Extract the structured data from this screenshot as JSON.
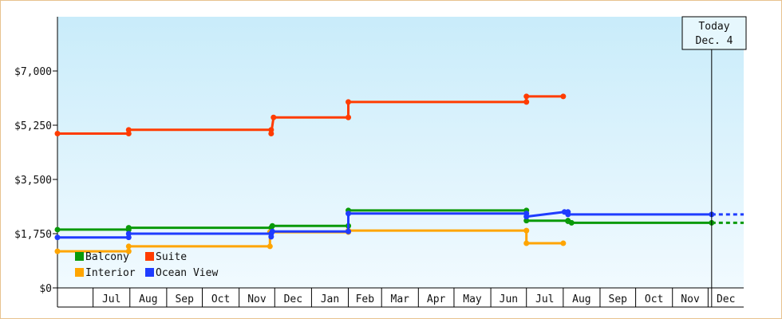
{
  "chart_data": {
    "type": "line",
    "style": "step",
    "x_unit": "date",
    "y_unit": "USD",
    "ylim": [
      0,
      8750
    ],
    "xlim": [
      "2024-06-01",
      "2025-12-31"
    ],
    "y_ticks": [
      {
        "value": 0,
        "label": "$0"
      },
      {
        "value": 1750,
        "label": "$1,750"
      },
      {
        "value": 3500,
        "label": "$3,500"
      },
      {
        "value": 5250,
        "label": "$5,250"
      },
      {
        "value": 7000,
        "label": "$7,000"
      }
    ],
    "month_labels": [
      "Jul",
      "Aug",
      "Sep",
      "Oct",
      "Nov",
      "Dec",
      "Jan",
      "Feb",
      "Mar",
      "Apr",
      "May",
      "Jun",
      "Jul",
      "Aug",
      "Sep",
      "Oct",
      "Nov",
      "Dec"
    ],
    "background_gradient": [
      "#c9ecfa",
      "#f1faff"
    ],
    "legend": {
      "placement": "bottom-left"
    },
    "today": {
      "line1": "Today",
      "line2": "Dec. 4",
      "date": "2025-12-04"
    },
    "series": [
      {
        "name": "Balcony",
        "color": "#0a9a0a",
        "extends_dashed": true,
        "points": [
          [
            "2024-06-01",
            1880
          ],
          [
            "2024-07-31",
            1880
          ],
          [
            "2024-07-31",
            1940
          ],
          [
            "2024-11-28",
            1940
          ],
          [
            "2024-11-28",
            1790
          ],
          [
            "2024-11-29",
            2000
          ],
          [
            "2025-02-01",
            2000
          ],
          [
            "2025-02-01",
            2500
          ],
          [
            "2025-07-01",
            2500
          ],
          [
            "2025-07-01",
            2170
          ],
          [
            "2025-08-05",
            2170
          ],
          [
            "2025-08-05",
            2150
          ],
          [
            "2025-08-08",
            2100
          ],
          [
            "2025-12-04",
            2100
          ]
        ]
      },
      {
        "name": "Suite",
        "color": "#ff3c00",
        "points": [
          [
            "2024-06-01",
            4980
          ],
          [
            "2024-07-31",
            4980
          ],
          [
            "2024-07-31",
            5100
          ],
          [
            "2024-11-28",
            5100
          ],
          [
            "2024-11-28",
            4980
          ],
          [
            "2024-11-30",
            5500
          ],
          [
            "2025-02-01",
            5500
          ],
          [
            "2025-02-01",
            6000
          ],
          [
            "2025-07-01",
            6000
          ],
          [
            "2025-07-01",
            6180
          ],
          [
            "2025-08-01",
            6180
          ]
        ]
      },
      {
        "name": "Interior",
        "color": "#ffa500",
        "points": [
          [
            "2024-06-01",
            1180
          ],
          [
            "2024-07-31",
            1180
          ],
          [
            "2024-07-31",
            1340
          ],
          [
            "2024-11-27",
            1340
          ],
          [
            "2024-11-27",
            1800
          ],
          [
            "2025-02-01",
            1800
          ],
          [
            "2025-02-01",
            1850
          ],
          [
            "2025-07-01",
            1850
          ],
          [
            "2025-07-01",
            1440
          ],
          [
            "2025-08-01",
            1440
          ]
        ]
      },
      {
        "name": "Ocean View",
        "color": "#1f3cff",
        "extends_dashed": true,
        "points": [
          [
            "2024-06-01",
            1630
          ],
          [
            "2024-07-31",
            1630
          ],
          [
            "2024-07-31",
            1750
          ],
          [
            "2024-11-28",
            1750
          ],
          [
            "2024-11-28",
            1650
          ],
          [
            "2024-11-29",
            1820
          ],
          [
            "2025-02-01",
            1820
          ],
          [
            "2025-02-01",
            2400
          ],
          [
            "2025-07-01",
            2400
          ],
          [
            "2025-07-01",
            2300
          ],
          [
            "2025-08-02",
            2450
          ],
          [
            "2025-08-05",
            2450
          ],
          [
            "2025-08-05",
            2370
          ],
          [
            "2025-12-04",
            2370
          ]
        ]
      }
    ]
  }
}
